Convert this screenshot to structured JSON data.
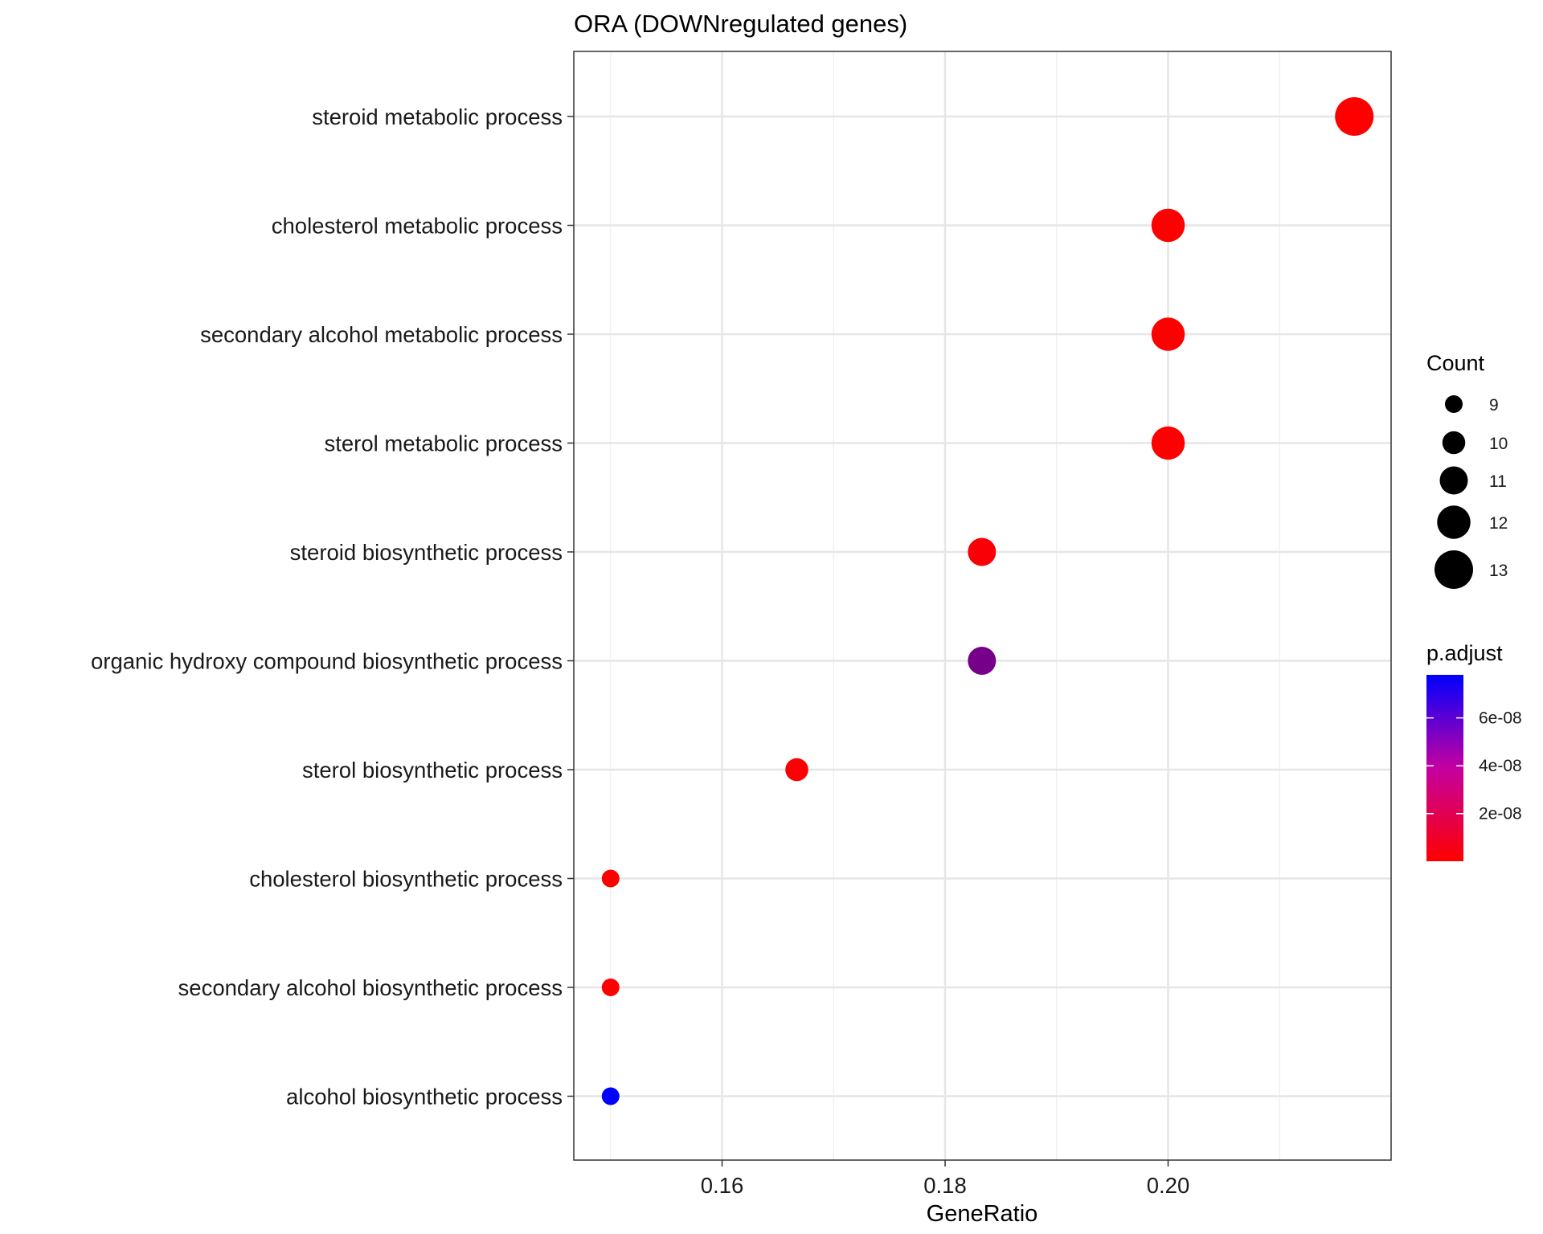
{
  "chart_data": {
    "type": "scatter",
    "title": "ORA (DOWNregulated genes)",
    "xlabel": "GeneRatio",
    "ylabel": "",
    "xlim": [
      0.1467,
      0.22
    ],
    "x_ticks": [
      0.16,
      0.18,
      0.2
    ],
    "x_tick_labels": [
      "0.16",
      "0.18",
      "0.20"
    ],
    "grid": true,
    "categories": [
      "steroid metabolic process",
      "cholesterol metabolic process",
      "secondary alcohol metabolic process",
      "sterol metabolic process",
      "steroid biosynthetic process",
      "organic hydroxy compound biosynthetic process",
      "sterol biosynthetic process",
      "cholesterol biosynthetic process",
      "secondary alcohol biosynthetic process",
      "alcohol biosynthetic process"
    ],
    "points": [
      {
        "term": "steroid metabolic process",
        "gene_ratio": 0.2167,
        "count": 13,
        "p_adjust": 2e-10
      },
      {
        "term": "cholesterol metabolic process",
        "gene_ratio": 0.2,
        "count": 12,
        "p_adjust": 1e-10
      },
      {
        "term": "secondary alcohol metabolic process",
        "gene_ratio": 0.2,
        "count": 12,
        "p_adjust": 1e-10
      },
      {
        "term": "sterol metabolic process",
        "gene_ratio": 0.2,
        "count": 12,
        "p_adjust": 1e-10
      },
      {
        "term": "steroid biosynthetic process",
        "gene_ratio": 0.1833,
        "count": 11,
        "p_adjust": 2e-09
      },
      {
        "term": "organic hydroxy compound biosynthetic process",
        "gene_ratio": 0.1833,
        "count": 11,
        "p_adjust": 4.2e-08
      },
      {
        "term": "sterol biosynthetic process",
        "gene_ratio": 0.1667,
        "count": 10,
        "p_adjust": 1e-09
      },
      {
        "term": "cholesterol biosynthetic process",
        "gene_ratio": 0.15,
        "count": 9,
        "p_adjust": 2e-10
      },
      {
        "term": "secondary alcohol biosynthetic process",
        "gene_ratio": 0.15,
        "count": 9,
        "p_adjust": 2e-10
      },
      {
        "term": "alcohol biosynthetic process",
        "gene_ratio": 0.15,
        "count": 9,
        "p_adjust": 7.8e-08
      }
    ],
    "legend": {
      "placement": "right",
      "size_title": "Count",
      "size_values": [
        9,
        10,
        11,
        12,
        13
      ],
      "size_labels": [
        "9",
        "10",
        "11",
        "12",
        "13"
      ],
      "color_title": "p.adjust",
      "color_range": [
        1e-10,
        7.8e-08
      ],
      "color_breaks": [
        6e-08,
        4e-08,
        2e-08
      ],
      "color_break_labels": [
        "6e-08",
        "4e-08",
        "2e-08"
      ],
      "color_low": "#ff0000",
      "color_high": "#0000ff"
    }
  }
}
